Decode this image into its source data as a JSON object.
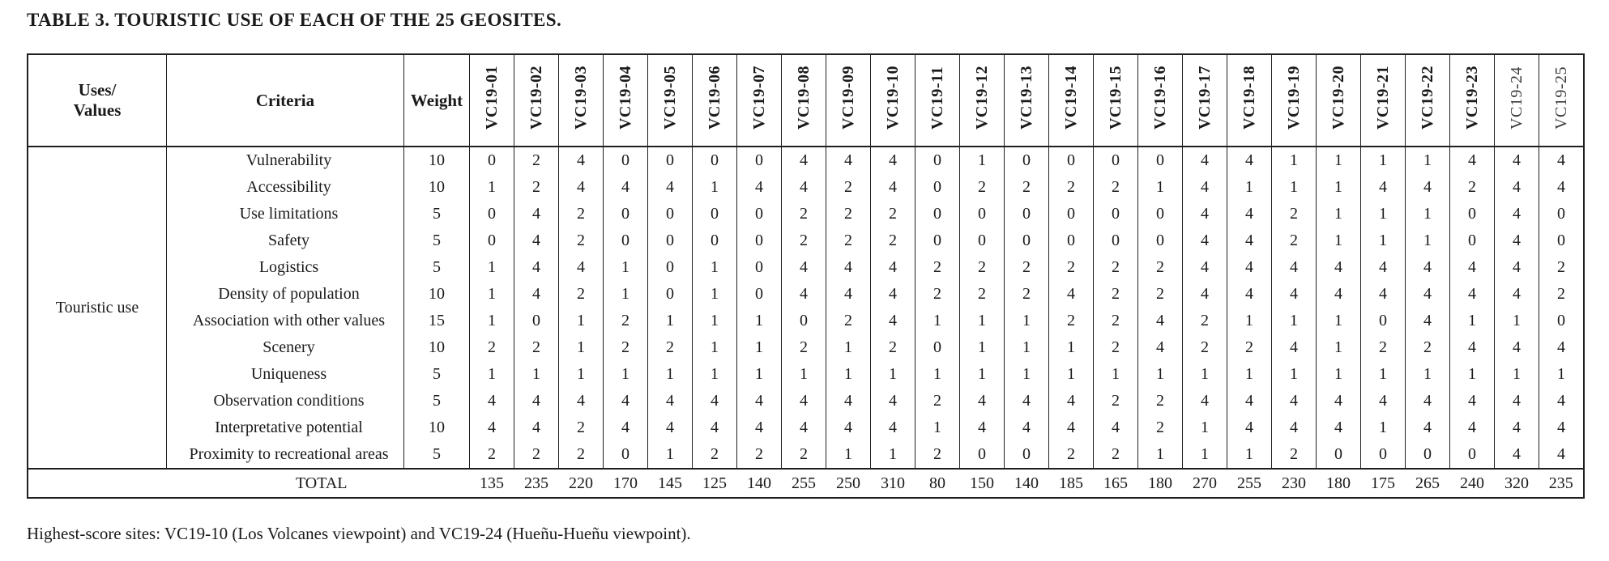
{
  "page": {
    "title": "TABLE 3. TOURISTIC USE OF EACH OF THE 25 GEOSITES.",
    "footnote": "Highest-score sites: VC19-10 (Los Volcanes viewpoint) and VC19-24 (Hueñu-Hueñu viewpoint)."
  },
  "table": {
    "corner_header": {
      "line1": "Uses/",
      "line2": "Values"
    },
    "criteria_header": "Criteria",
    "weight_header": "Weight",
    "site_columns": [
      "VC19-01",
      "VC19-02",
      "VC19-03",
      "VC19-04",
      "VC19-05",
      "VC19-06",
      "VC19-07",
      "VC19-08",
      "VC19-09",
      "VC19-10",
      "VC19-11",
      "VC19-12",
      "VC19-13",
      "VC19-14",
      "VC19-15",
      "VC19-16",
      "VC19-17",
      "VC19-18",
      "VC19-19",
      "VC19-20",
      "VC19-21",
      "VC19-22",
      "VC19-23",
      "VC19-24",
      "VC19-25"
    ],
    "regular_weight_columns": [
      "VC19-24",
      "VC19-25"
    ],
    "group_label": "Touristic use",
    "rows": [
      {
        "criteria": "Vulnerability",
        "weight": 10,
        "scores": [
          0,
          2,
          4,
          0,
          0,
          0,
          0,
          4,
          4,
          4,
          0,
          1,
          0,
          0,
          0,
          0,
          4,
          4,
          1,
          1,
          1,
          1,
          4,
          4,
          4
        ]
      },
      {
        "criteria": "Accessibility",
        "weight": 10,
        "scores": [
          1,
          2,
          4,
          4,
          4,
          1,
          4,
          4,
          2,
          4,
          0,
          2,
          2,
          2,
          2,
          1,
          4,
          1,
          1,
          1,
          4,
          4,
          2,
          4,
          4
        ]
      },
      {
        "criteria": "Use limitations",
        "weight": 5,
        "scores": [
          0,
          4,
          2,
          0,
          0,
          0,
          0,
          2,
          2,
          2,
          0,
          0,
          0,
          0,
          0,
          0,
          4,
          4,
          2,
          1,
          1,
          1,
          0,
          4,
          0
        ]
      },
      {
        "criteria": "Safety",
        "weight": 5,
        "scores": [
          0,
          4,
          2,
          0,
          0,
          0,
          0,
          2,
          2,
          2,
          0,
          0,
          0,
          0,
          0,
          0,
          4,
          4,
          2,
          1,
          1,
          1,
          0,
          4,
          0
        ]
      },
      {
        "criteria": "Logistics",
        "weight": 5,
        "scores": [
          1,
          4,
          4,
          1,
          0,
          1,
          0,
          4,
          4,
          4,
          2,
          2,
          2,
          2,
          2,
          2,
          4,
          4,
          4,
          4,
          4,
          4,
          4,
          4,
          2
        ]
      },
      {
        "criteria": "Density of population",
        "weight": 10,
        "scores": [
          1,
          4,
          2,
          1,
          0,
          1,
          0,
          4,
          4,
          4,
          2,
          2,
          2,
          4,
          2,
          2,
          4,
          4,
          4,
          4,
          4,
          4,
          4,
          4,
          2
        ]
      },
      {
        "criteria": "Association with other values",
        "weight": 15,
        "scores": [
          1,
          0,
          1,
          2,
          1,
          1,
          1,
          0,
          2,
          4,
          1,
          1,
          1,
          2,
          2,
          4,
          2,
          1,
          1,
          1,
          0,
          4,
          1,
          1,
          0
        ]
      },
      {
        "criteria": "Scenery",
        "weight": 10,
        "scores": [
          2,
          2,
          1,
          2,
          2,
          1,
          1,
          2,
          1,
          2,
          0,
          1,
          1,
          1,
          2,
          4,
          2,
          2,
          4,
          1,
          2,
          2,
          4,
          4,
          4
        ]
      },
      {
        "criteria": "Uniqueness",
        "weight": 5,
        "scores": [
          1,
          1,
          1,
          1,
          1,
          1,
          1,
          1,
          1,
          1,
          1,
          1,
          1,
          1,
          1,
          1,
          1,
          1,
          1,
          1,
          1,
          1,
          1,
          1,
          1
        ]
      },
      {
        "criteria": "Observation conditions",
        "weight": 5,
        "scores": [
          4,
          4,
          4,
          4,
          4,
          4,
          4,
          4,
          4,
          4,
          2,
          4,
          4,
          4,
          2,
          2,
          4,
          4,
          4,
          4,
          4,
          4,
          4,
          4,
          4
        ]
      },
      {
        "criteria": "Interpretative potential",
        "weight": 10,
        "scores": [
          4,
          4,
          2,
          4,
          4,
          4,
          4,
          4,
          4,
          4,
          1,
          4,
          4,
          4,
          4,
          2,
          1,
          4,
          4,
          4,
          1,
          4,
          4,
          4,
          4
        ]
      },
      {
        "criteria": "Proximity to recreational areas",
        "weight": 5,
        "scores": [
          2,
          2,
          2,
          0,
          1,
          2,
          2,
          2,
          1,
          1,
          2,
          0,
          0,
          2,
          2,
          1,
          1,
          1,
          2,
          0,
          0,
          0,
          0,
          4,
          4
        ]
      }
    ],
    "total_label": "TOTAL",
    "totals": [
      135,
      235,
      220,
      170,
      145,
      125,
      140,
      255,
      250,
      310,
      80,
      150,
      140,
      185,
      165,
      180,
      270,
      255,
      230,
      180,
      175,
      265,
      240,
      320,
      235
    ]
  }
}
